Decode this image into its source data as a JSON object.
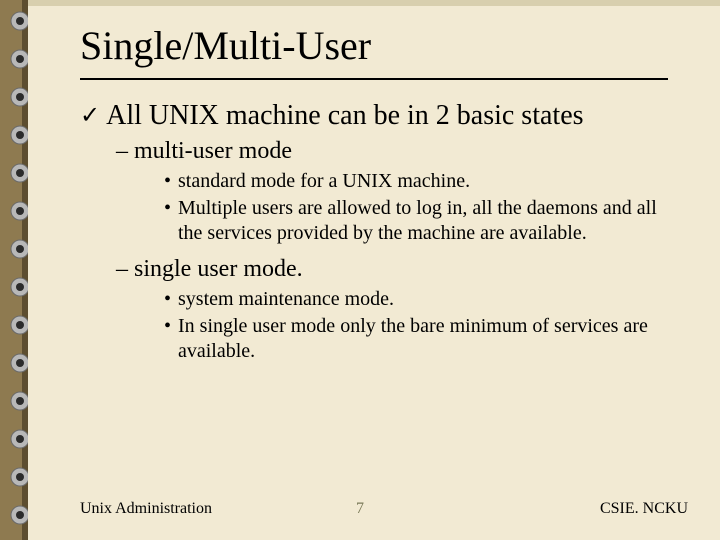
{
  "title": "Single/Multi-User",
  "level1_text": "All UNIX machine can be in 2 basic states",
  "sections": {
    "s0": {
      "heading": "multi-user mode",
      "b0": "standard mode for a UNIX machine.",
      "b1": "Multiple users are allowed to log in, all the daemons and all the services provided by the machine are available."
    },
    "s1": {
      "heading": "single user mode.",
      "b0": "system maintenance mode.",
      "b1": "In single user mode only the bare minimum of services are available."
    }
  },
  "footer": {
    "left": "Unix Administration",
    "page": "7",
    "right": "CSIE. NCKU"
  },
  "colors": {
    "paper": "#f2ead3",
    "paper_edge": "#d8cfae",
    "strip": "#8e7a50",
    "strip_shadow": "#5d4e30",
    "ring_outer": "#b8b8b8",
    "ring_inner": "#6a6a6a",
    "hole": "#2b2b2b",
    "text": "#000000",
    "page_num": "#7a7a58"
  },
  "binder": {
    "ring_count": 14,
    "strip_width": 28,
    "ring_radius": 9,
    "hole_radius": 4,
    "top_margin": 12,
    "spacing": 38
  }
}
